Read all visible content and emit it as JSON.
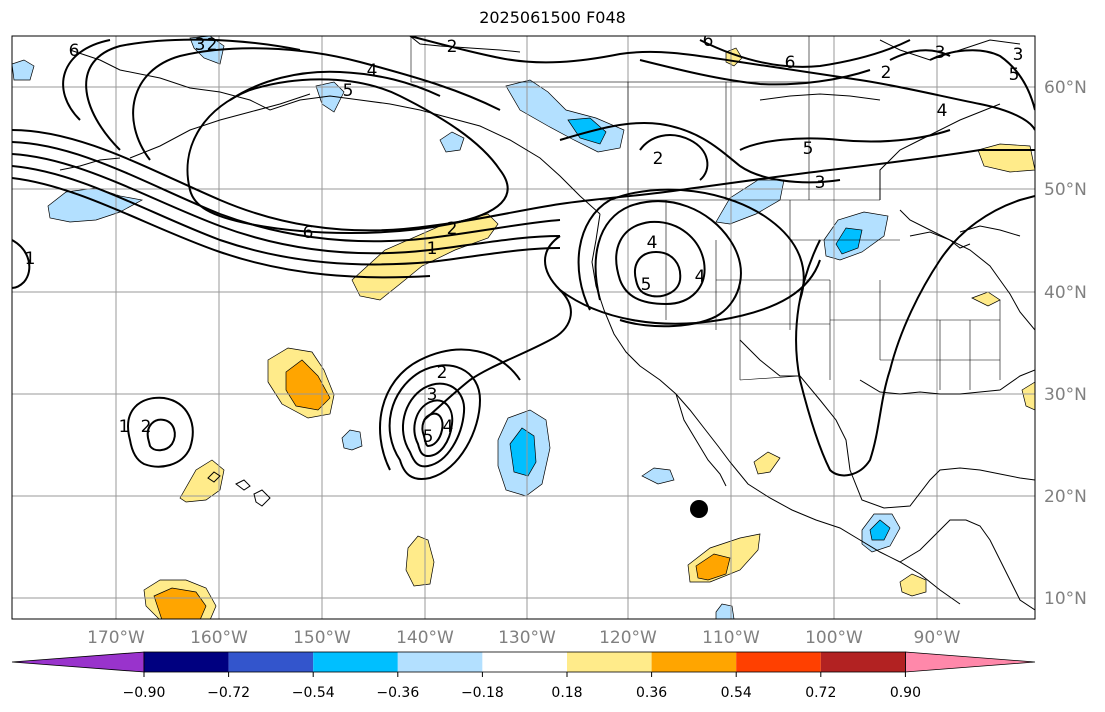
{
  "title": "2025061500 F048",
  "lon_labels": [
    "170°W",
    "160°W",
    "150°W",
    "140°W",
    "130°W",
    "120°W",
    "110°W",
    "100°W",
    "90°W"
  ],
  "lat_labels": [
    "60°N",
    "50°N",
    "40°N",
    "30°N",
    "20°N",
    "10°N"
  ],
  "contour_labels": [
    {
      "id": "c6-nw",
      "text": "6"
    },
    {
      "id": "c3-nw",
      "text": "3"
    },
    {
      "id": "c2-nw",
      "text": "2"
    },
    {
      "id": "c4-gulf",
      "text": "4"
    },
    {
      "id": "c5-gulf",
      "text": "5"
    },
    {
      "id": "c6-pac",
      "text": "6"
    },
    {
      "id": "c2-ak",
      "text": "2"
    },
    {
      "id": "c6-canada",
      "text": "6"
    },
    {
      "id": "c6-canada2",
      "text": "6"
    },
    {
      "id": "c3-ne",
      "text": "3"
    },
    {
      "id": "c3-ne2",
      "text": "3"
    },
    {
      "id": "c4-ne",
      "text": "4"
    },
    {
      "id": "c5-ne",
      "text": "5"
    },
    {
      "id": "c2-ne",
      "text": "2"
    },
    {
      "id": "c5-canada",
      "text": "5"
    },
    {
      "id": "c3-canada",
      "text": "3"
    },
    {
      "id": "c2-bc",
      "text": "2"
    },
    {
      "id": "c4-ca",
      "text": "4"
    },
    {
      "id": "c5-ca",
      "text": "5"
    },
    {
      "id": "c2-jet",
      "text": "2"
    },
    {
      "id": "c1-jet",
      "text": "1"
    },
    {
      "id": "c1-west",
      "text": "1"
    },
    {
      "id": "c1-hawaii",
      "text": "1"
    },
    {
      "id": "c2-hawaii",
      "text": "2"
    },
    {
      "id": "c2-low",
      "text": "2"
    },
    {
      "id": "c3-low",
      "text": "3"
    },
    {
      "id": "c4-low",
      "text": "4"
    },
    {
      "id": "c5-low",
      "text": "5"
    },
    {
      "id": "c4-nev",
      "text": "4"
    }
  ],
  "colorbar": {
    "colors": [
      "#9933cc",
      "#000080",
      "#3355cc",
      "#00bfff",
      "#b3e0ff",
      "#ffffff",
      "#ffeb8a",
      "#ffa500",
      "#ff4000",
      "#b22222",
      "#ff88aa"
    ],
    "tick_labels": [
      "−0.90",
      "−0.72",
      "−0.54",
      "−0.36",
      "−0.18",
      "0.18",
      "0.36",
      "0.54",
      "0.72",
      "0.90"
    ]
  }
}
